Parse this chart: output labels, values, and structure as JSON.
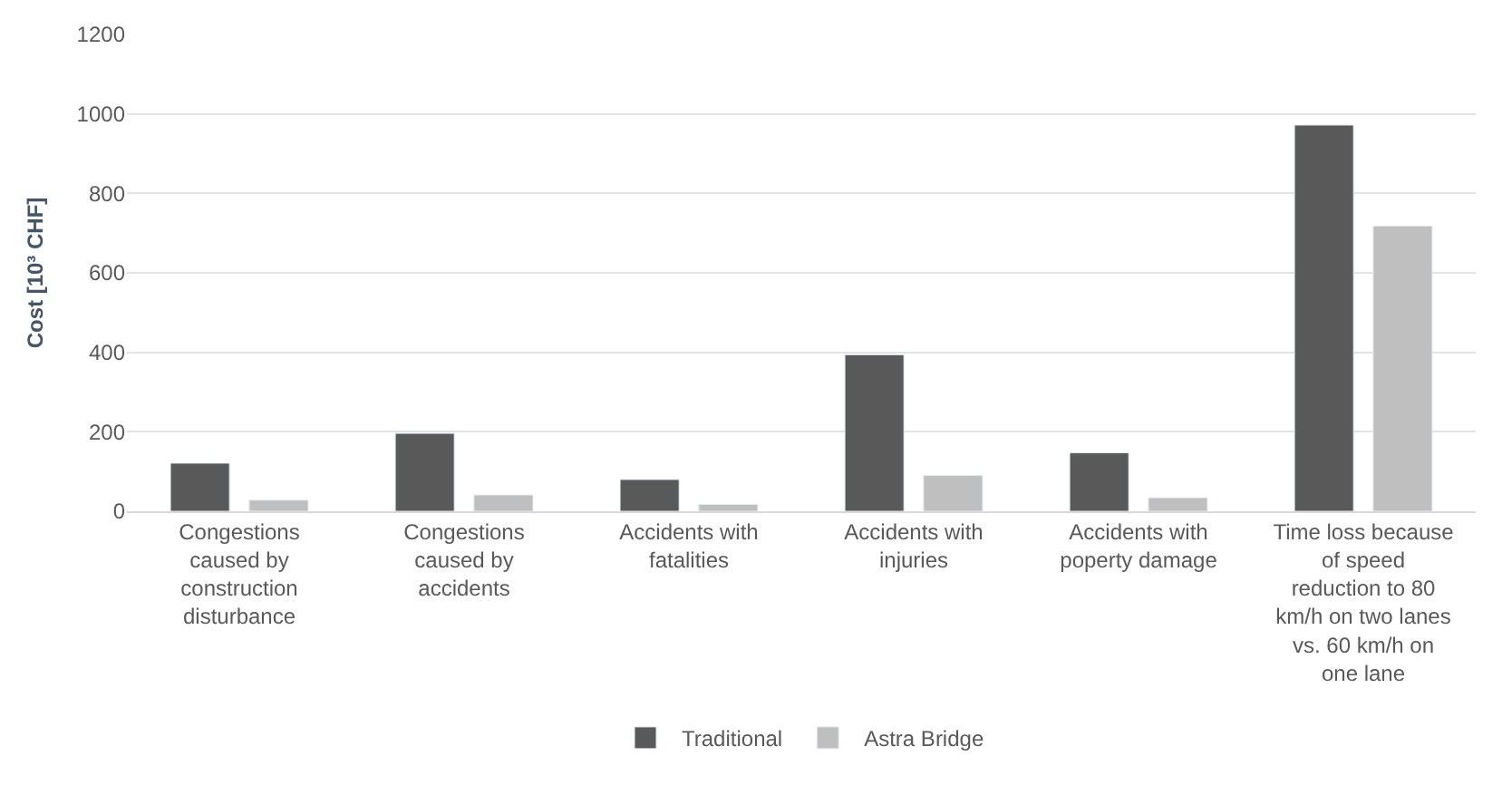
{
  "chart_data": {
    "type": "bar",
    "ylabel": "Cost [10³ CHF]",
    "categories": [
      "Congestions caused by construction disturbance",
      "Congestions caused by accidents",
      "Accidents with fatalities",
      "Accidents with injuries",
      "Accidents with poperty damage",
      "Time loss because of speed reduction to 80 km/h on two lanes vs. 60 km/h on one lane"
    ],
    "series": [
      {
        "name": "Traditional",
        "color": "#595959",
        "values": [
          121,
          196,
          80,
          394,
          147,
          972
        ]
      },
      {
        "name": "Astra Bridge",
        "color": "#bfbfbf",
        "values": [
          28,
          41,
          17,
          90,
          34,
          718
        ]
      }
    ],
    "ylim": [
      0,
      1200
    ],
    "yticks": [
      0,
      200,
      400,
      600,
      800,
      1000,
      1200
    ],
    "grid": "y",
    "legend": "bottom"
  }
}
